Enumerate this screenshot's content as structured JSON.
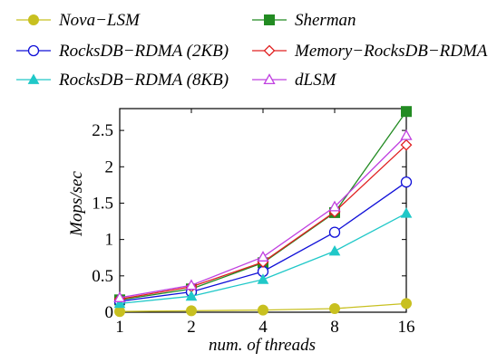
{
  "chart_data": {
    "type": "line",
    "title": "",
    "xlabel": "num. of threads",
    "ylabel": "Mops/sec",
    "x": [
      1,
      2,
      4,
      8,
      16
    ],
    "x_scale": "log2",
    "xticks": [
      "1",
      "2",
      "4",
      "8",
      "16"
    ],
    "ylim": [
      0,
      2.8
    ],
    "yticks": [
      "0",
      "0.5",
      "1",
      "1.5",
      "2",
      "2.5"
    ],
    "ytick_values": [
      0,
      0.5,
      1,
      1.5,
      2,
      2.5
    ],
    "grid": false,
    "legend_position": "top",
    "series": [
      {
        "name": "Nova−LSM",
        "color": "#c8c020",
        "marker": "circle-filled",
        "values": [
          0.01,
          0.02,
          0.03,
          0.05,
          0.12
        ]
      },
      {
        "name": "Sherman",
        "color": "#228B22",
        "marker": "square-filled",
        "values": [
          0.17,
          0.32,
          0.68,
          1.37,
          2.76
        ]
      },
      {
        "name": "RocksDB−RDMA (2KB)",
        "color": "#1010d8",
        "marker": "circle-open",
        "values": [
          0.15,
          0.28,
          0.56,
          1.1,
          1.79
        ]
      },
      {
        "name": "Memory−RocksDB−RDMA",
        "color": "#e02020",
        "marker": "diamond-open",
        "values": [
          0.18,
          0.35,
          0.69,
          1.38,
          2.3
        ]
      },
      {
        "name": "RocksDB−RDMA (8KB)",
        "color": "#20c8c8",
        "marker": "triangle-filled",
        "values": [
          0.12,
          0.22,
          0.45,
          0.84,
          1.36
        ]
      },
      {
        "name": "dLSM",
        "color": "#c040e0",
        "marker": "triangle-open",
        "values": [
          0.2,
          0.37,
          0.76,
          1.45,
          2.43
        ]
      }
    ]
  }
}
